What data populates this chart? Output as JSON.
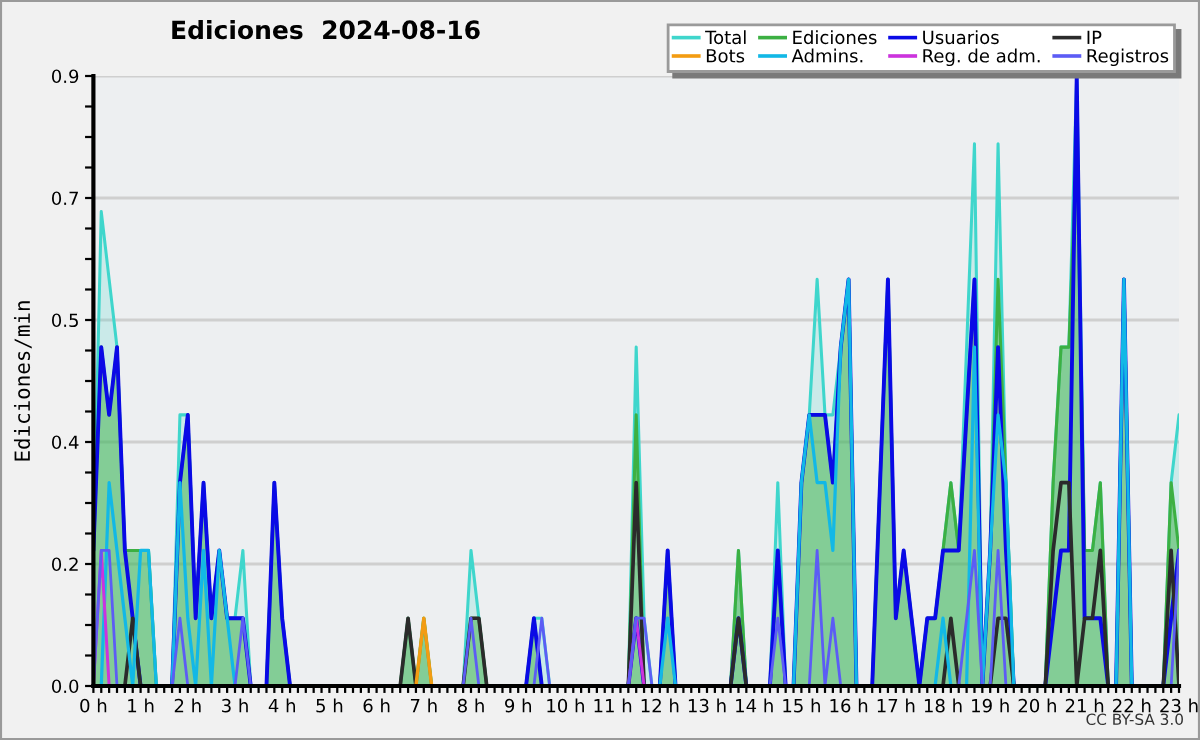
{
  "chart_data": {
    "type": "line",
    "title": "Ediciones  2024-08-16",
    "ylabel": "Ediciones/min",
    "categories": [
      "0 h",
      null,
      null,
      null,
      null,
      null,
      "1 h",
      null,
      null,
      null,
      null,
      null,
      "2 h",
      null,
      null,
      null,
      null,
      null,
      "3 h",
      null,
      null,
      null,
      null,
      null,
      "4 h",
      null,
      null,
      null,
      null,
      null,
      "5 h",
      null,
      null,
      null,
      null,
      null,
      "6 h",
      null,
      null,
      null,
      null,
      null,
      "7 h",
      null,
      null,
      null,
      null,
      null,
      "8 h",
      null,
      null,
      null,
      null,
      null,
      "9 h",
      null,
      null,
      null,
      null,
      null,
      "10 h",
      null,
      null,
      null,
      null,
      null,
      "11 h",
      null,
      null,
      null,
      null,
      null,
      "12 h",
      null,
      null,
      null,
      null,
      null,
      "13 h",
      null,
      null,
      null,
      null,
      null,
      "14 h",
      null,
      null,
      null,
      null,
      null,
      "15 h",
      null,
      null,
      null,
      null,
      null,
      "16 h",
      null,
      null,
      null,
      null,
      null,
      "17 h",
      null,
      null,
      null,
      null,
      null,
      "18 h",
      null,
      null,
      null,
      null,
      null,
      "19 h",
      null,
      null,
      null,
      null,
      null,
      "20 h",
      null,
      null,
      null,
      null,
      null,
      "21 h",
      null,
      null,
      null,
      null,
      null,
      "22 h",
      null,
      null,
      null,
      null,
      null,
      "23 h"
    ],
    "series": [
      {
        "name": "Total",
        "type": "area",
        "color": "#3fd6cc",
        "values": [
          0.2,
          0.7,
          0.6,
          0.5,
          0.2,
          0.2,
          0.2,
          0.2,
          0,
          0,
          0,
          0.4,
          0.4,
          0.1,
          0.3,
          0.1,
          0.2,
          0.1,
          0.1,
          0.2,
          0,
          0,
          0,
          0.3,
          0.1,
          0,
          0,
          0,
          0,
          0,
          0,
          0,
          0,
          0,
          0,
          0,
          0,
          0,
          0,
          0,
          0.1,
          0,
          0.1,
          0,
          0,
          0,
          0,
          0,
          0.2,
          0.1,
          0,
          0,
          0,
          0,
          0,
          0,
          0.1,
          0.1,
          0,
          0,
          0,
          0,
          0,
          0,
          0,
          0,
          0,
          0,
          0,
          0.5,
          0.1,
          0,
          0,
          0.2,
          0,
          0,
          0,
          0,
          0,
          0,
          0,
          0,
          0.2,
          0,
          0,
          0,
          0,
          0.3,
          0,
          0,
          0.3,
          0.4,
          0.6,
          0.4,
          0.4,
          0.5,
          0.6,
          0,
          0,
          0,
          0.3,
          0.6,
          0.1,
          0.2,
          0.1,
          0,
          0.1,
          0.1,
          0.2,
          0.3,
          0.2,
          0.5,
          0.8,
          0,
          0.2,
          0.8,
          0.3,
          0,
          0,
          0,
          0,
          0,
          0.3,
          0.5,
          0.5,
          0.9,
          0.2,
          0.2,
          0.3,
          0,
          0,
          0.6,
          0,
          0,
          0,
          0,
          0,
          0.3,
          0.4
        ]
      },
      {
        "name": "Ediciones",
        "type": "area",
        "color": "#3cb043",
        "values": [
          0.2,
          0.5,
          0.4,
          0.5,
          0.2,
          0.2,
          0.2,
          0.2,
          0,
          0,
          0,
          0.3,
          0.4,
          0.1,
          0.3,
          0.1,
          0.2,
          0.1,
          0.1,
          0.1,
          0,
          0,
          0,
          0.3,
          0.1,
          0,
          0,
          0,
          0,
          0,
          0,
          0,
          0,
          0,
          0,
          0,
          0,
          0,
          0,
          0,
          0.1,
          0,
          0.1,
          0,
          0,
          0,
          0,
          0,
          0.1,
          0.1,
          0,
          0,
          0,
          0,
          0,
          0,
          0.1,
          0,
          0,
          0,
          0,
          0,
          0,
          0,
          0,
          0,
          0,
          0,
          0,
          0.4,
          0,
          0,
          0,
          0.2,
          0,
          0,
          0,
          0,
          0,
          0,
          0,
          0,
          0.2,
          0,
          0,
          0,
          0,
          0.2,
          0,
          0,
          0.3,
          0.4,
          0.4,
          0.4,
          0.3,
          0.5,
          0.6,
          0,
          0,
          0,
          0.3,
          0.6,
          0.1,
          0.2,
          0.1,
          0,
          0.1,
          0.1,
          0.2,
          0.3,
          0.2,
          0.4,
          0.6,
          0,
          0.2,
          0.6,
          0.3,
          0,
          0,
          0,
          0,
          0,
          0.3,
          0.5,
          0.5,
          0.8,
          0.2,
          0.2,
          0.3,
          0,
          0,
          0.6,
          0,
          0,
          0,
          0,
          0,
          0.3,
          0.2
        ]
      },
      {
        "name": "Usuarios",
        "color": "#0a0ae6",
        "values": [
          0.2,
          0.5,
          0.4,
          0.5,
          0.2,
          0.1,
          0,
          0,
          0,
          0,
          0,
          0.3,
          0.4,
          0.1,
          0.3,
          0.1,
          0.2,
          0.1,
          0.1,
          0.1,
          0,
          0,
          0,
          0.3,
          0.1,
          0,
          null,
          null,
          null,
          null,
          null,
          null,
          null,
          null,
          null,
          null,
          null,
          null,
          null,
          null,
          null,
          null,
          null,
          null,
          null,
          null,
          null,
          null,
          null,
          null,
          null,
          null,
          null,
          null,
          null,
          0,
          0.1,
          0,
          null,
          null,
          null,
          null,
          null,
          null,
          null,
          null,
          null,
          null,
          0,
          0.1,
          0,
          null,
          0,
          0.2,
          0,
          null,
          null,
          null,
          null,
          null,
          null,
          0,
          0.1,
          0,
          null,
          null,
          0,
          0.2,
          0,
          0,
          0.3,
          0.4,
          0.4,
          0.4,
          0.3,
          0.5,
          0.6,
          0,
          null,
          0,
          0.3,
          0.6,
          0.1,
          0.2,
          0.1,
          0,
          0.1,
          0.1,
          0.2,
          0.2,
          0.2,
          0.4,
          0.6,
          0,
          0.2,
          0.5,
          0.2,
          0,
          null,
          null,
          null,
          0,
          0.1,
          0.2,
          0.2,
          0.9,
          0.1,
          0.1,
          0.1,
          0,
          0,
          0.6,
          0,
          null,
          null,
          null,
          0,
          0.1,
          0.2
        ]
      },
      {
        "name": "IP",
        "color": "#2b2b2b",
        "values": [
          null,
          null,
          null,
          null,
          0,
          0.1,
          0,
          null,
          null,
          null,
          null,
          null,
          null,
          null,
          null,
          null,
          null,
          null,
          null,
          null,
          null,
          null,
          null,
          null,
          null,
          null,
          null,
          null,
          null,
          null,
          null,
          null,
          null,
          null,
          null,
          null,
          null,
          null,
          null,
          0,
          0.1,
          0,
          0,
          0,
          0,
          0,
          0,
          0,
          0.1,
          0.1,
          0,
          null,
          null,
          null,
          null,
          null,
          null,
          null,
          null,
          null,
          null,
          null,
          null,
          null,
          null,
          null,
          null,
          null,
          0,
          0.3,
          0,
          null,
          null,
          null,
          null,
          null,
          null,
          null,
          null,
          null,
          null,
          0,
          0.1,
          0,
          null,
          null,
          null,
          null,
          null,
          null,
          null,
          null,
          null,
          null,
          null,
          null,
          null,
          null,
          null,
          null,
          null,
          null,
          null,
          null,
          null,
          null,
          null,
          null,
          0,
          0.1,
          0,
          null,
          null,
          null,
          0,
          0.1,
          0.1,
          0,
          null,
          null,
          null,
          0,
          0.2,
          0.3,
          0.3,
          0,
          0.1,
          0.1,
          0.2,
          0,
          null,
          null,
          null,
          null,
          null,
          null,
          0,
          0.2,
          0
        ]
      },
      {
        "name": "Bots",
        "color": "#f39c12",
        "values": [
          null,
          null,
          null,
          null,
          null,
          null,
          null,
          null,
          null,
          null,
          null,
          null,
          null,
          null,
          null,
          null,
          null,
          null,
          null,
          null,
          null,
          null,
          null,
          null,
          null,
          null,
          null,
          null,
          null,
          null,
          null,
          null,
          null,
          null,
          null,
          null,
          null,
          null,
          null,
          null,
          null,
          0,
          0.1,
          0,
          null,
          null,
          null,
          null,
          null,
          null,
          null,
          null,
          null,
          null,
          null,
          null,
          null,
          null,
          null,
          null,
          null,
          null,
          null,
          null,
          null,
          null,
          null,
          null,
          null,
          null,
          null,
          null,
          null,
          null,
          null,
          null,
          null,
          null,
          null,
          null,
          null,
          null,
          null,
          null,
          null,
          null,
          null,
          null,
          null,
          null,
          null,
          null,
          null,
          null,
          null,
          null,
          null,
          null,
          null,
          null,
          null,
          null,
          null,
          null,
          null,
          null,
          null,
          null,
          null,
          null,
          null,
          null,
          null,
          null,
          null,
          null,
          null,
          null,
          null,
          null,
          null,
          null,
          null,
          null,
          null,
          null,
          null,
          null,
          null,
          null,
          null,
          null,
          null,
          null,
          null,
          null,
          null,
          null,
          null
        ]
      },
      {
        "name": "Admins.",
        "color": "#12b8e6",
        "values": [
          null,
          0,
          0.3,
          0.2,
          0.1,
          0,
          0.2,
          0.2,
          0,
          null,
          0,
          0.3,
          0.1,
          0,
          0.2,
          0,
          0.2,
          0.1,
          0,
          null,
          null,
          null,
          null,
          null,
          null,
          null,
          null,
          null,
          null,
          null,
          null,
          null,
          null,
          null,
          null,
          null,
          null,
          null,
          null,
          null,
          null,
          null,
          null,
          null,
          null,
          null,
          null,
          null,
          null,
          null,
          null,
          null,
          null,
          null,
          null,
          null,
          null,
          null,
          null,
          null,
          null,
          null,
          null,
          null,
          null,
          null,
          null,
          null,
          null,
          null,
          null,
          null,
          0,
          0.1,
          0,
          null,
          null,
          null,
          null,
          null,
          null,
          null,
          null,
          null,
          null,
          null,
          null,
          null,
          null,
          0,
          0.3,
          0.4,
          0.3,
          0.3,
          0.2,
          0.5,
          0.6,
          0,
          null,
          null,
          null,
          null,
          null,
          null,
          null,
          null,
          null,
          0,
          0.1,
          0,
          null,
          0,
          0.5,
          0,
          0.2,
          0.4,
          0.3,
          0,
          null,
          null,
          null,
          null,
          null,
          null,
          null,
          null,
          null,
          null,
          null,
          null,
          0,
          0.6,
          0,
          null,
          null,
          null,
          null,
          null,
          null
        ]
      },
      {
        "name": "Reg. de adm.",
        "color": "#cc33dd",
        "values": [
          0,
          0.2,
          0,
          null,
          null,
          null,
          null,
          null,
          null,
          null,
          null,
          null,
          null,
          null,
          null,
          null,
          null,
          null,
          null,
          null,
          null,
          null,
          null,
          null,
          null,
          null,
          null,
          null,
          null,
          null,
          null,
          null,
          null,
          null,
          null,
          null,
          null,
          null,
          null,
          null,
          null,
          null,
          null,
          null,
          null,
          null,
          null,
          null,
          null,
          null,
          null,
          null,
          null,
          null,
          null,
          null,
          null,
          null,
          null,
          null,
          null,
          null,
          null,
          null,
          null,
          null,
          null,
          null,
          0,
          0.1,
          0,
          null,
          null,
          null,
          null,
          null,
          null,
          null,
          null,
          null,
          null,
          null,
          null,
          null,
          null,
          null,
          null,
          null,
          null,
          null,
          null,
          null,
          null,
          null,
          null,
          null,
          null,
          null,
          null,
          null,
          null,
          null,
          null,
          null,
          null,
          null,
          null,
          null,
          null,
          null,
          null,
          null,
          null,
          null,
          null,
          null,
          null,
          null,
          null,
          null,
          null,
          null,
          null,
          null,
          null,
          null,
          null,
          null,
          null,
          null,
          null,
          null,
          null,
          null,
          null,
          null,
          null,
          null,
          null
        ]
      },
      {
        "name": "Registros",
        "color": "#5c5cf5",
        "values": [
          0,
          0.2,
          0.2,
          0,
          null,
          null,
          null,
          null,
          null,
          null,
          0,
          0.1,
          0,
          null,
          null,
          null,
          null,
          null,
          0,
          0.1,
          0,
          null,
          null,
          null,
          null,
          null,
          null,
          null,
          null,
          null,
          null,
          null,
          null,
          null,
          null,
          null,
          null,
          null,
          null,
          null,
          null,
          null,
          null,
          null,
          null,
          null,
          null,
          0,
          0.1,
          0,
          null,
          null,
          null,
          null,
          null,
          null,
          0,
          0.1,
          0,
          0,
          0,
          0,
          0,
          0,
          0,
          0,
          0,
          0,
          0,
          0.1,
          0.1,
          0,
          null,
          null,
          null,
          null,
          null,
          null,
          null,
          null,
          null,
          null,
          null,
          null,
          null,
          null,
          0,
          0.1,
          0,
          null,
          null,
          0,
          0.2,
          0,
          0.1,
          0,
          null,
          null,
          null,
          null,
          null,
          null,
          null,
          null,
          null,
          null,
          null,
          null,
          null,
          null,
          0,
          0.1,
          0.2,
          0,
          0,
          0.2,
          0,
          null,
          null,
          null,
          null,
          null,
          null,
          null,
          null,
          null,
          null,
          null,
          null,
          null,
          null,
          null,
          null,
          null,
          null,
          null,
          null,
          0,
          0.2
        ]
      }
    ],
    "ylim": [
      0,
      0.9
    ],
    "yticks": [
      {
        "value": 0,
        "label": "0.0"
      },
      {
        "value": 0.045,
        "label": null
      },
      {
        "value": 0.09,
        "label": null
      },
      {
        "value": 0.135,
        "label": null
      },
      {
        "value": 0.18,
        "label": "0.2"
      },
      {
        "value": 0.225,
        "label": null
      },
      {
        "value": 0.27,
        "label": null
      },
      {
        "value": 0.315,
        "label": null
      },
      {
        "value": 0.36,
        "label": "0.4"
      },
      {
        "value": 0.405,
        "label": null
      },
      {
        "value": 0.45,
        "label": null
      },
      {
        "value": 0.495,
        "label": null
      },
      {
        "value": 0.54,
        "label": "0.5"
      },
      {
        "value": 0.585,
        "label": null
      },
      {
        "value": 0.63,
        "label": null
      },
      {
        "value": 0.675,
        "label": null
      },
      {
        "value": 0.72,
        "label": "0.7"
      },
      {
        "value": 0.765,
        "label": null
      },
      {
        "value": 0.81,
        "label": null
      },
      {
        "value": 0.855,
        "label": null
      },
      {
        "value": 0.9,
        "label": "0.9"
      }
    ],
    "grid": "y",
    "legend": "top right",
    "annotations": [
      "CC BY-SA 3.0"
    ]
  }
}
